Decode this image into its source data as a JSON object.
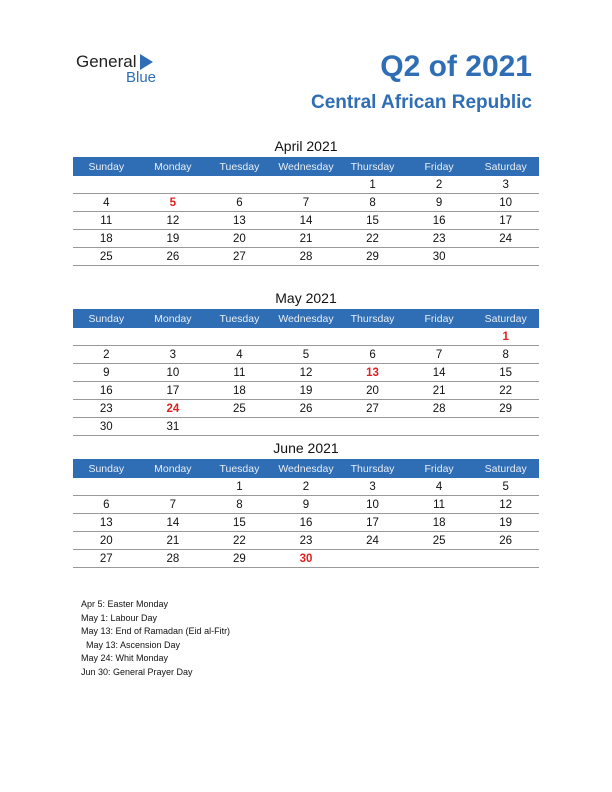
{
  "logo": {
    "general": "General",
    "blue": "Blue"
  },
  "header": {
    "title": "Q2 of 2021",
    "subtitle": "Central African Republic"
  },
  "weekdays": [
    "Sunday",
    "Monday",
    "Tuesday",
    "Wednesday",
    "Thursday",
    "Friday",
    "Saturday"
  ],
  "months": [
    {
      "title": "April 2021",
      "weeks": [
        [
          "",
          "",
          "",
          "",
          "1",
          "2",
          "3"
        ],
        [
          "4",
          "5",
          "6",
          "7",
          "8",
          "9",
          "10"
        ],
        [
          "11",
          "12",
          "13",
          "14",
          "15",
          "16",
          "17"
        ],
        [
          "18",
          "19",
          "20",
          "21",
          "22",
          "23",
          "24"
        ],
        [
          "25",
          "26",
          "27",
          "28",
          "29",
          "30",
          ""
        ]
      ],
      "holidays": [
        "5"
      ]
    },
    {
      "title": "May 2021",
      "weeks": [
        [
          "",
          "",
          "",
          "",
          "",
          "",
          "1"
        ],
        [
          "2",
          "3",
          "4",
          "5",
          "6",
          "7",
          "8"
        ],
        [
          "9",
          "10",
          "11",
          "12",
          "13",
          "14",
          "15"
        ],
        [
          "16",
          "17",
          "18",
          "19",
          "20",
          "21",
          "22"
        ],
        [
          "23",
          "24",
          "25",
          "26",
          "27",
          "28",
          "29"
        ],
        [
          "30",
          "31",
          "",
          "",
          "",
          "",
          ""
        ]
      ],
      "holidays": [
        "1",
        "13",
        "24"
      ]
    },
    {
      "title": "June 2021",
      "weeks": [
        [
          "",
          "",
          "1",
          "2",
          "3",
          "4",
          "5"
        ],
        [
          "6",
          "7",
          "8",
          "9",
          "10",
          "11",
          "12"
        ],
        [
          "13",
          "14",
          "15",
          "16",
          "17",
          "18",
          "19"
        ],
        [
          "20",
          "21",
          "22",
          "23",
          "24",
          "25",
          "26"
        ],
        [
          "27",
          "28",
          "29",
          "30",
          "",
          "",
          ""
        ]
      ],
      "holidays": [
        "30"
      ]
    }
  ],
  "notes": [
    "Apr 5: Easter Monday",
    "May 1: Labour Day",
    "May 13: End of Ramadan (Eid al-Fitr)",
    "  May 13: Ascension Day",
    "May 24: Whit Monday",
    "Jun 30: General Prayer Day"
  ],
  "colors": {
    "accent": "#2f6eb4",
    "holiday": "#e02020"
  }
}
